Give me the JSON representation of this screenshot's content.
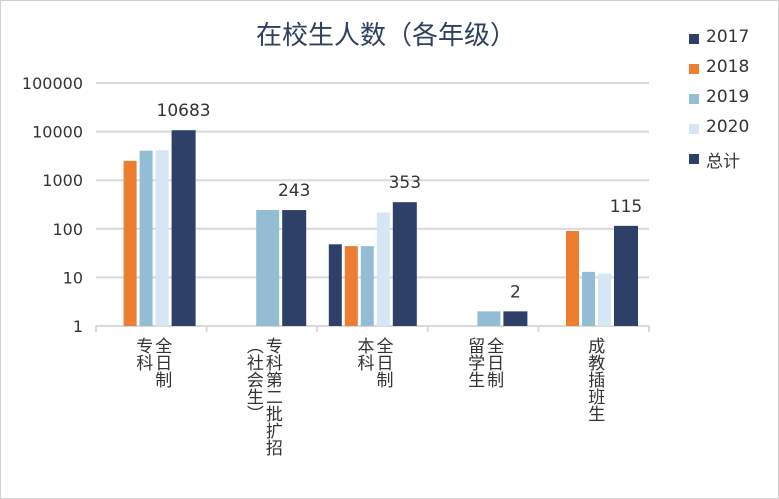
{
  "chart_data": {
    "type": "bar",
    "title": "在校生人数（各年级）",
    "yscale": "log",
    "ylim": [
      1,
      100000
    ],
    "yticks": [
      "1",
      "10",
      "100",
      "1000",
      "10000",
      "100000"
    ],
    "categories": [
      "全日制\n专科",
      "专科第二批扩招\n（社会生）",
      "全日制\n本科",
      "全日制\n留学生",
      "成教插班生"
    ],
    "series": [
      {
        "name": "2017",
        "color": "#2e4068",
        "values": [
          null,
          null,
          48,
          null,
          null
        ]
      },
      {
        "name": "2018",
        "color": "#ed7d31",
        "values": [
          2500,
          null,
          44,
          null,
          90
        ]
      },
      {
        "name": "2019",
        "color": "#92bdd5",
        "values": [
          4050,
          243,
          44,
          2,
          13
        ]
      },
      {
        "name": "2020",
        "color": "#d6e6f4",
        "values": [
          4133,
          null,
          217,
          null,
          12
        ]
      },
      {
        "name": "总计",
        "color": "#2e4068",
        "values": [
          10683,
          243,
          353,
          2,
          115
        ]
      }
    ],
    "data_labels": [
      "10683",
      "243",
      "353",
      "2",
      "115"
    ],
    "legend": "right"
  }
}
